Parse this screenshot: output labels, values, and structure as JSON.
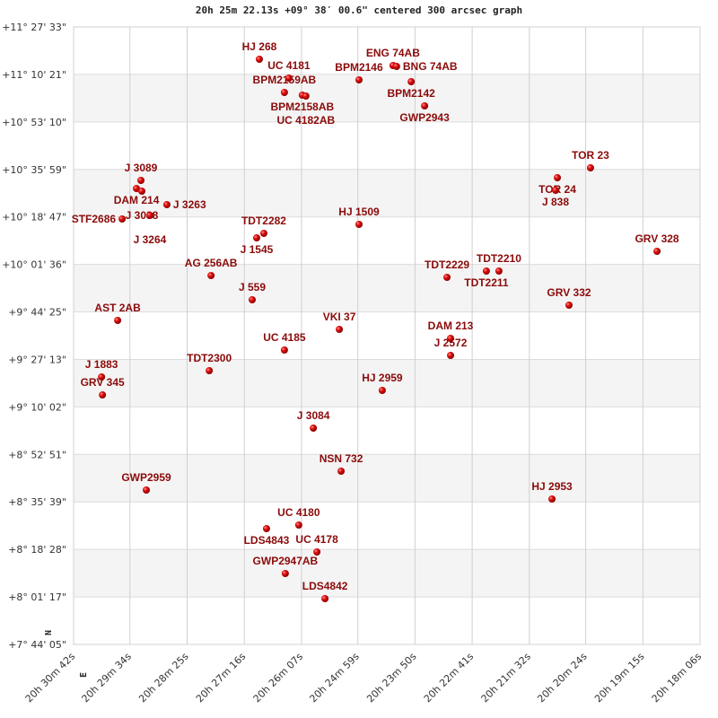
{
  "chart_data": {
    "type": "scatter",
    "title": "20h 25m 22.13s +09° 38′ 00.6\" centered 300 arcsec graph",
    "x_axis": {
      "quantity": "right ascension (hours)",
      "range": [
        20.51167,
        20.30167
      ],
      "reversed": true,
      "tick_values": [
        20.51167,
        20.49278,
        20.47361,
        20.45444,
        20.43528,
        20.41639,
        20.39722,
        20.37806,
        20.35889,
        20.34,
        20.32083,
        20.30167
      ],
      "tick_labels": [
        "20h 30m 42s",
        "20h 29m 34s",
        "20h 28m 25s",
        "20h 27m 16s",
        "20h 26m 07s",
        "20h 24m 59s",
        "20h 23m 50s",
        "20h 22m 41s",
        "20h 21m 32s",
        "20h 20m 24s",
        "20h 19m 15s",
        "20h 18m 06s"
      ]
    },
    "y_axis": {
      "quantity": "declination (degrees)",
      "range": [
        7.73472,
        11.45917
      ],
      "tick_labels": [
        "+11° 27' 33\"",
        "+11° 10' 21\"",
        "+10° 53' 10\"",
        "+10° 35' 59\"",
        "+10° 18' 47\"",
        "+10° 01' 36\"",
        "+9° 44' 25\"",
        "+9° 27' 13\"",
        "+9° 10' 02\"",
        "+8° 52' 51\"",
        "+8° 35' 39\"",
        "+8° 18' 28\"",
        "+8° 01' 17\"",
        "+7° 44' 05\""
      ]
    },
    "grid": true,
    "alternating_bands": true,
    "compass": {
      "north": "N",
      "east": "E"
    },
    "colors": {
      "star": "#cc0000",
      "label": "#8b0a0a",
      "band": "#f4f4f4",
      "grid": "#d0d0d0"
    },
    "points": [
      {
        "label": "HJ  268",
        "ra": 20.4494,
        "dec": 11.2643
      },
      {
        "label": "UC 4181",
        "ra": 20.4395,
        "dec": 11.1506
      },
      {
        "label": "BPM2159AB",
        "ra": 20.441,
        "dec": 11.064
      },
      {
        "label": "BPM2158AB",
        "ra": 20.435,
        "dec": 11.0477
      },
      {
        "label": "UC 4182AB",
        "ra": 20.4338,
        "dec": 11.0423
      },
      {
        "label": "BPM2146",
        "ra": 20.416,
        "dec": 11.1398
      },
      {
        "label": "ENG 74AB",
        "ra": 20.4046,
        "dec": 11.2264
      },
      {
        "label": "BNG 74AB",
        "ra": 20.4034,
        "dec": 11.221
      },
      {
        "label": "BPM2142",
        "ra": 20.3985,
        "dec": 11.1289
      },
      {
        "label": "GWP2943",
        "ra": 20.394,
        "dec": 10.9828
      },
      {
        "label": "J  3089",
        "ra": 20.4891,
        "dec": 10.5335
      },
      {
        "label": "DAM 214",
        "ra": 20.4906,
        "dec": 10.4847
      },
      {
        "label": "J  3088",
        "ra": 20.4888,
        "dec": 10.4685
      },
      {
        "label": "J  3263",
        "ra": 20.4804,
        "dec": 10.3873
      },
      {
        "label": "J  3264",
        "ra": 20.4861,
        "dec": 10.3223
      },
      {
        "label": "STF2686",
        "ra": 20.4954,
        "dec": 10.3007
      },
      {
        "label": "TDT2282",
        "ra": 20.4479,
        "dec": 10.2141
      },
      {
        "label": "J  1545",
        "ra": 20.4503,
        "dec": 10.187
      },
      {
        "label": "HJ 1509",
        "ra": 20.416,
        "dec": 10.2682
      },
      {
        "label": "TOR  23",
        "ra": 20.3384,
        "dec": 10.6093
      },
      {
        "label": "TOR  24",
        "ra": 20.3495,
        "dec": 10.5497
      },
      {
        "label": "J   838",
        "ra": 20.3501,
        "dec": 10.4739
      },
      {
        "label": "GRV 328",
        "ra": 20.3161,
        "dec": 10.1058
      },
      {
        "label": "TDT2229",
        "ra": 20.3865,
        "dec": 9.9488
      },
      {
        "label": "TDT2211",
        "ra": 20.3733,
        "dec": 9.9867
      },
      {
        "label": "TDT2210",
        "ra": 20.3691,
        "dec": 9.9867
      },
      {
        "label": "AG  256AB",
        "ra": 20.4656,
        "dec": 9.9596
      },
      {
        "label": "J   559",
        "ra": 20.4518,
        "dec": 9.8135
      },
      {
        "label": "GRV 332",
        "ra": 20.3456,
        "dec": 9.781
      },
      {
        "label": "AST   2AB",
        "ra": 20.4969,
        "dec": 9.689
      },
      {
        "label": "VKI  37",
        "ra": 20.4226,
        "dec": 9.6348
      },
      {
        "label": "DAM 213",
        "ra": 20.3853,
        "dec": 9.5807
      },
      {
        "label": "J  2572",
        "ra": 20.3853,
        "dec": 9.4778
      },
      {
        "label": "UC 4185",
        "ra": 20.441,
        "dec": 9.5103
      },
      {
        "label": "TDT2300",
        "ra": 20.4662,
        "dec": 9.3858
      },
      {
        "label": "J  1883",
        "ra": 20.5023,
        "dec": 9.3479
      },
      {
        "label": "HJ 2959",
        "ra": 20.4082,
        "dec": 9.2667
      },
      {
        "label": "GRV 345",
        "ra": 20.502,
        "dec": 9.2396
      },
      {
        "label": "J  3084",
        "ra": 20.4313,
        "dec": 9.0393
      },
      {
        "label": "NSN 732",
        "ra": 20.422,
        "dec": 8.7795
      },
      {
        "label": "GWP2959",
        "ra": 20.4873,
        "dec": 8.6658
      },
      {
        "label": "HJ 2953",
        "ra": 20.3513,
        "dec": 8.6117
      },
      {
        "label": "UC 4180",
        "ra": 20.4362,
        "dec": 8.4547
      },
      {
        "label": "LDS4843",
        "ra": 20.447,
        "dec": 8.433
      },
      {
        "label": "UC 4178",
        "ra": 20.4301,
        "dec": 8.2923
      },
      {
        "label": "GWP2947AB",
        "ra": 20.4407,
        "dec": 8.1623
      },
      {
        "label": "LDS4842",
        "ra": 20.4274,
        "dec": 8.0108
      }
    ]
  }
}
